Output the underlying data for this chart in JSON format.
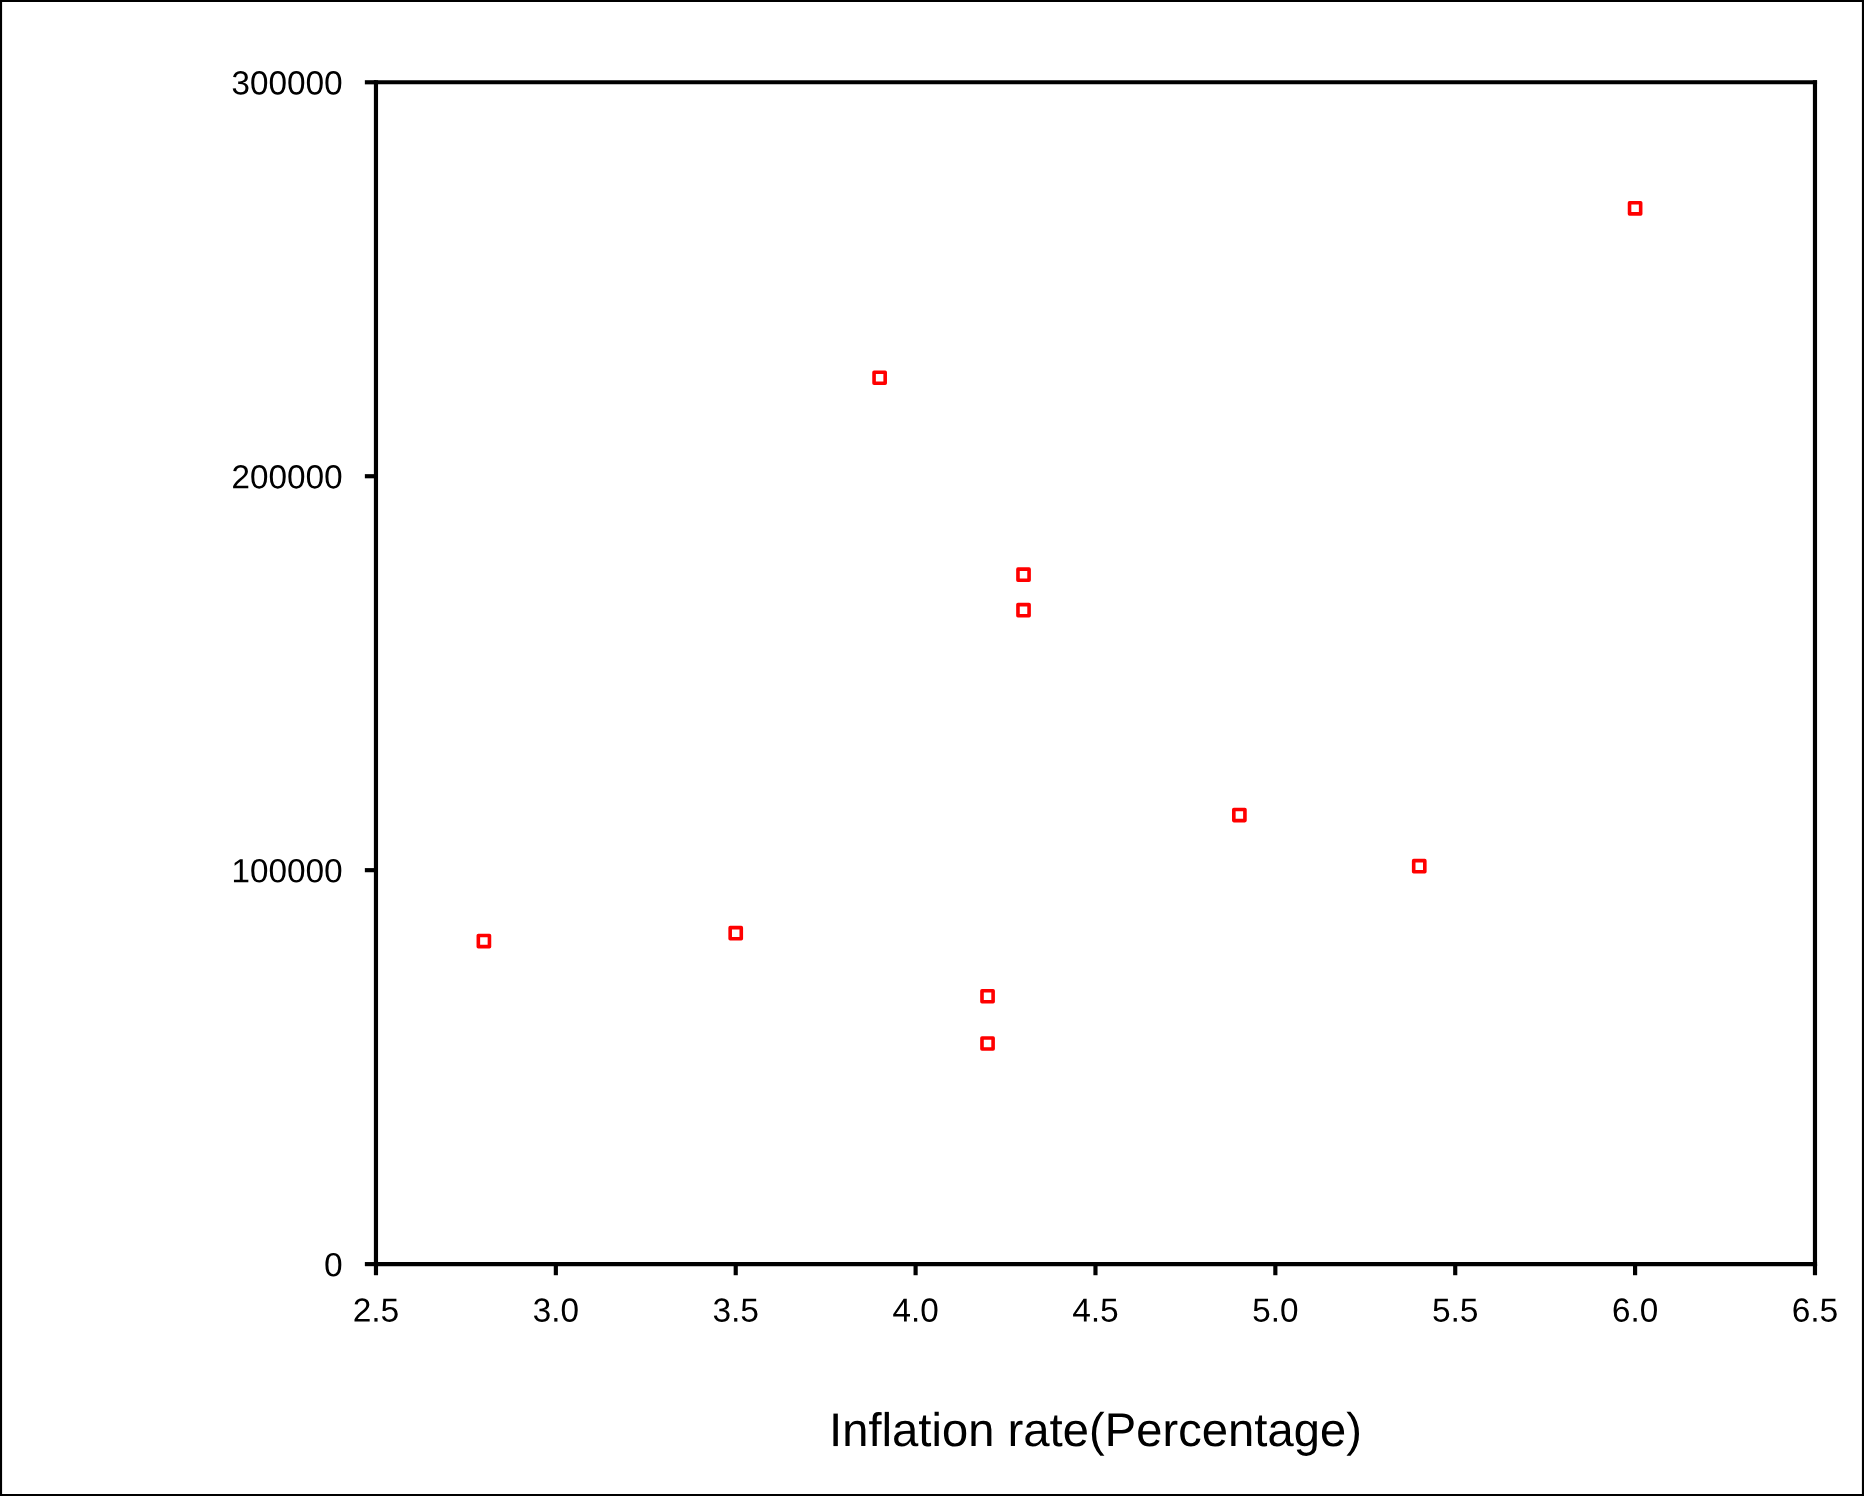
{
  "chart_data": {
    "type": "scatter",
    "xlabel": "Inflation rate(Percentage)",
    "x": [
      2.8,
      3.5,
      3.9,
      4.3,
      4.3,
      4.2,
      4.2,
      4.9,
      5.4,
      6.0
    ],
    "series": [
      {
        "color": "#ff0000",
        "values": [
          82000,
          84000,
          225000,
          175000,
          166000,
          68000,
          56000,
          114000,
          101000,
          268000
        ]
      }
    ],
    "xlim": [
      2.5,
      6.5
    ],
    "xticks": [
      {
        "value": 2.5,
        "label": "2.5"
      },
      {
        "value": 3.0,
        "label": "3.0"
      },
      {
        "value": 3.5,
        "label": "3.5"
      },
      {
        "value": 4.0,
        "label": "4.0"
      },
      {
        "value": 4.5,
        "label": "4.5"
      },
      {
        "value": 5.0,
        "label": "5.0"
      },
      {
        "value": 5.5,
        "label": "5.5"
      },
      {
        "value": 6.0,
        "label": "6.0"
      },
      {
        "value": 6.5,
        "label": "6.5"
      }
    ],
    "ylim": [
      0,
      300000
    ],
    "yticks": [
      0,
      100000,
      200000,
      300000
    ],
    "marker": "square",
    "grid": false,
    "legend": false
  }
}
